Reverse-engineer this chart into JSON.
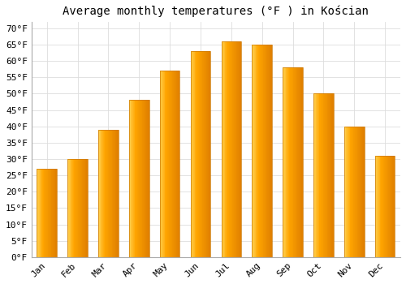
{
  "title": "Average monthly temperatures (°F ) in Kościan",
  "months": [
    "Jan",
    "Feb",
    "Mar",
    "Apr",
    "May",
    "Jun",
    "Jul",
    "Aug",
    "Sep",
    "Oct",
    "Nov",
    "Dec"
  ],
  "values": [
    27,
    30,
    39,
    48,
    57,
    63,
    66,
    65,
    58,
    50,
    40,
    31
  ],
  "bar_color_light": "#FFD050",
  "bar_color_mid": "#FFA500",
  "bar_color_dark": "#E07800",
  "background_color": "#FFFFFF",
  "grid_color": "#DDDDDD",
  "ylim": [
    0,
    72
  ],
  "yticks": [
    0,
    5,
    10,
    15,
    20,
    25,
    30,
    35,
    40,
    45,
    50,
    55,
    60,
    65,
    70
  ],
  "title_fontsize": 10,
  "tick_fontsize": 8,
  "tick_font": "monospace",
  "bar_width": 0.65
}
